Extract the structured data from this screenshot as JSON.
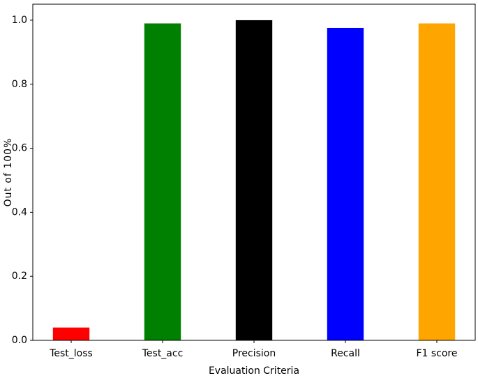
{
  "chart_data": {
    "type": "bar",
    "xlabel": "Evaluation Criteria",
    "ylabel": "Out of 100%",
    "categories": [
      "Test_loss",
      "Test_acc",
      "Precision",
      "Recall",
      "F1 score"
    ],
    "values": [
      0.04,
      0.99,
      1.0,
      0.976,
      0.99
    ],
    "colors": [
      "red",
      "green",
      "black",
      "blue",
      "orange"
    ],
    "ylim": [
      0,
      1.05
    ],
    "yticks": [
      {
        "value": 0,
        "label": "0.0"
      },
      0.2,
      0.4,
      0.6,
      0.8,
      {
        "value": 1,
        "label": "1.0"
      }
    ],
    "grid": false
  }
}
